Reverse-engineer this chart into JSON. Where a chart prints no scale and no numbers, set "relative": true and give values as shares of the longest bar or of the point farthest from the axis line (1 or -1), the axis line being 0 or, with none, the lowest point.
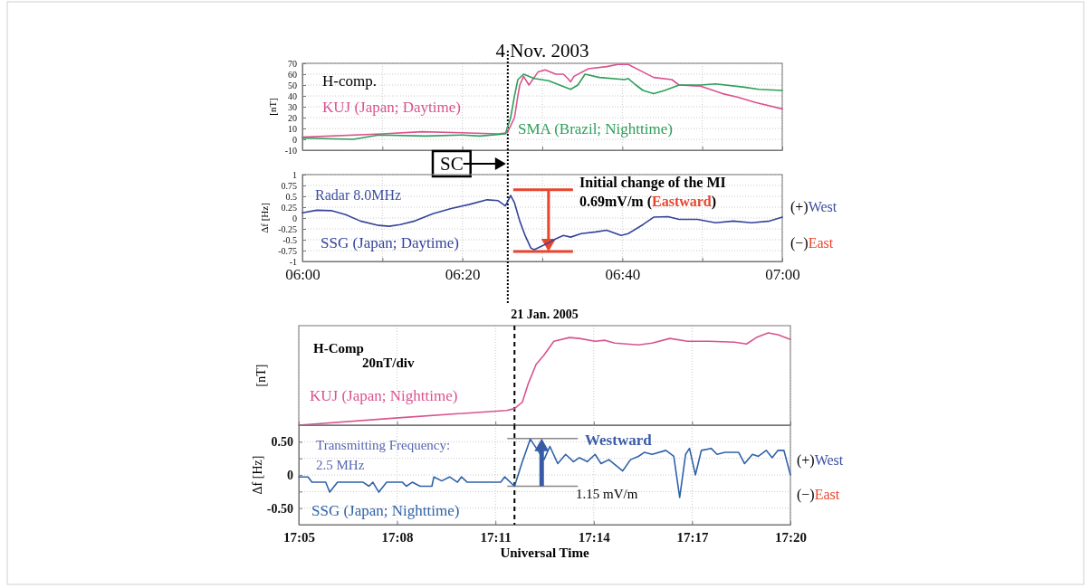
{
  "chart_data": [
    {
      "type": "line",
      "title": "4 Nov. 2003",
      "ylabel": "[nT]",
      "xlim": [
        6,
        7
      ],
      "ylim": [
        -10,
        70
      ],
      "xticks": [
        6,
        6.1667,
        6.3333,
        6.5,
        6.6667,
        6.8333,
        7
      ],
      "yticks": [
        -10,
        0,
        10,
        20,
        30,
        40,
        50,
        60,
        70
      ],
      "tick_labels": "y",
      "grid": true,
      "annotations": [
        "H-comp.",
        "SC"
      ],
      "ref_lines": [
        {
          "axis": "x",
          "value": 6.428,
          "color": "#000000",
          "line_style": "dotted"
        }
      ],
      "series": [
        {
          "name": "KUJ (Japan; Daytime)",
          "color": "#d9538f",
          "x": [
            6.0,
            6.166,
            6.249,
            6.332,
            6.408,
            6.427,
            6.442,
            6.449,
            6.453,
            6.461,
            6.472,
            6.491,
            6.506,
            6.528,
            6.544,
            6.553,
            6.559,
            6.566,
            6.596,
            6.634,
            6.657,
            6.679,
            6.71,
            6.732,
            6.77,
            6.785,
            6.83,
            6.876,
            6.906,
            6.944,
            7.0
          ],
          "values": [
            2,
            5,
            7,
            6,
            5,
            6,
            20,
            40,
            50,
            58,
            50,
            62,
            64,
            60,
            60,
            56,
            53,
            58,
            65,
            67,
            69,
            69,
            62,
            57,
            55,
            50,
            49,
            42,
            39,
            34,
            28
          ]
        },
        {
          "name": "SMA (Brazil; Nighttime)",
          "color": "#2e9e5b",
          "x": [
            6.0,
            6.106,
            6.159,
            6.257,
            6.332,
            6.37,
            6.423,
            6.434,
            6.442,
            6.449,
            6.461,
            6.483,
            6.513,
            6.536,
            6.559,
            6.574,
            6.589,
            6.619,
            6.672,
            6.679,
            6.695,
            6.71,
            6.732,
            6.755,
            6.785,
            6.83,
            6.861,
            6.921,
            6.951,
            7.0
          ],
          "values": [
            1,
            0,
            4,
            3,
            4,
            3,
            5,
            20,
            40,
            55,
            60,
            56,
            54,
            50,
            46,
            50,
            60,
            57,
            55,
            56,
            50,
            45,
            42,
            45,
            50,
            50,
            51,
            48,
            46,
            45
          ]
        }
      ]
    },
    {
      "type": "line",
      "ylabel": "Δf [Hz]",
      "xlim": [
        6,
        7
      ],
      "ylim": [
        -1,
        1
      ],
      "xticks": [
        {
          "value": 6,
          "label": "06:00"
        },
        {
          "value": 6.1667,
          "label": null
        },
        {
          "value": 6.3333,
          "label": "06:20"
        },
        {
          "value": 6.5,
          "label": null
        },
        {
          "value": 6.6667,
          "label": "06:40"
        },
        {
          "value": 6.8333,
          "label": null
        },
        {
          "value": 7,
          "label": "07:00"
        }
      ],
      "yticks": [
        -1,
        -0.75,
        -0.5,
        -0.25,
        0,
        0.25,
        0.5,
        0.75,
        1
      ],
      "grid": true,
      "annotations": [
        "Radar 8.0MHz",
        "Initial change of the MI",
        "0.69mV/m (Eastward)",
        "(+)West",
        "(−)East"
      ],
      "ref_lines": [
        {
          "axis": "x",
          "value": 6.428,
          "color": "#000000",
          "line_style": "dotted"
        },
        {
          "axis": "y",
          "value": 0.65,
          "color": "#e8452c"
        },
        {
          "axis": "y",
          "value": -0.77,
          "color": "#e8452c"
        }
      ],
      "series": [
        {
          "name": "SSG (Japan; Daytime)",
          "color": "#34449a",
          "x": [
            6.0,
            6.03,
            6.06,
            6.09,
            6.121,
            6.159,
            6.181,
            6.204,
            6.234,
            6.272,
            6.31,
            6.347,
            6.385,
            6.408,
            6.423,
            6.434,
            6.442,
            6.453,
            6.464,
            6.476,
            6.483,
            6.498,
            6.513,
            6.528,
            6.544,
            6.559,
            6.581,
            6.611,
            6.634,
            6.664,
            6.679,
            6.71,
            6.732,
            6.762,
            6.785,
            6.823,
            6.861,
            6.898,
            6.936,
            6.974,
            7.0
          ],
          "values": [
            0.12,
            0.18,
            0.17,
            0.08,
            -0.07,
            -0.17,
            -0.19,
            -0.15,
            -0.07,
            0.1,
            0.22,
            0.31,
            0.42,
            0.4,
            0.28,
            0.52,
            0.35,
            -0.07,
            -0.4,
            -0.69,
            -0.73,
            -0.65,
            -0.57,
            -0.48,
            -0.4,
            -0.44,
            -0.36,
            -0.32,
            -0.28,
            -0.4,
            -0.36,
            -0.15,
            0.02,
            0.03,
            -0.03,
            -0.03,
            -0.11,
            -0.07,
            -0.11,
            -0.07,
            0.02
          ]
        }
      ]
    },
    {
      "type": "line",
      "title": "21 Jan. 2005",
      "ylabel": "[nT]",
      "relative": true,
      "xlim": [
        17.0833,
        17.3333
      ],
      "xticks": [
        17.0833,
        17.1333,
        17.1833,
        17.2333,
        17.2833,
        17.3333
      ],
      "tick_labels": false,
      "grid": "x",
      "annotations": [
        "H-Comp",
        "20nT/div"
      ],
      "ref_lines": [
        {
          "axis": "x",
          "value": 17.193,
          "color": "#000000",
          "line_style": "dashed"
        }
      ],
      "series": [
        {
          "name": "KUJ (Japan; Nighttime)",
          "color": "#d9538f",
          "x": [
            17.0833,
            17.134,
            17.189,
            17.193,
            17.197,
            17.2,
            17.204,
            17.208,
            17.213,
            17.221,
            17.226,
            17.234,
            17.239,
            17.244,
            17.256,
            17.263,
            17.272,
            17.281,
            17.292,
            17.305,
            17.311,
            17.316,
            17.322,
            17.327,
            17.3333
          ],
          "values": [
            0,
            0.08,
            0.16,
            0.18,
            0.25,
            0.45,
            0.66,
            0.76,
            0.91,
            0.95,
            0.94,
            0.91,
            0.92,
            0.89,
            0.87,
            0.89,
            0.94,
            0.91,
            0.91,
            0.9,
            0.88,
            0.95,
            1,
            0.98,
            0.93
          ]
        }
      ]
    },
    {
      "type": "line",
      "xlabel": "Universal Time",
      "ylabel": "Δf [Hz]",
      "xlim": [
        17.0833,
        17.3333
      ],
      "ylim": [
        -0.75,
        0.75
      ],
      "xticks": [
        {
          "value": 17.0833,
          "label": "17:05"
        },
        {
          "value": 17.1333,
          "label": "17:08"
        },
        {
          "value": 17.1833,
          "label": "17:11"
        },
        {
          "value": 17.2333,
          "label": "17:14"
        },
        {
          "value": 17.2833,
          "label": "17:17"
        },
        {
          "value": 17.3333,
          "label": "17:20"
        }
      ],
      "yticks": [
        {
          "value": -0.5,
          "label": "-0.50"
        },
        {
          "value": -0.25,
          "label": null
        },
        0,
        {
          "value": 0.25,
          "label": null
        },
        {
          "value": 0.5,
          "label": "0.50"
        }
      ],
      "grid": true,
      "annotations": [
        "Transmitting Frequency:",
        "2.5 MHz",
        "Westward",
        "1.15 mV/m",
        "(+)West",
        "(−)East"
      ],
      "ref_lines": [
        {
          "axis": "x",
          "value": 17.193,
          "color": "#000000",
          "line_style": "dashed"
        },
        {
          "axis": "y",
          "value": 0.55,
          "color": "#888888"
        },
        {
          "axis": "y",
          "value": -0.17,
          "color": "#888888"
        }
      ],
      "series": [
        {
          "name": "SSG (Japan; Nighttime)",
          "color": "#2f62a8",
          "x": [
            17.0833,
            17.088,
            17.09,
            17.097,
            17.099,
            17.103,
            17.116,
            17.119,
            17.121,
            17.124,
            17.128,
            17.136,
            17.138,
            17.141,
            17.145,
            17.151,
            17.152,
            17.156,
            17.16,
            17.164,
            17.166,
            17.169,
            17.186,
            17.188,
            17.193,
            17.197,
            17.201,
            17.208,
            17.211,
            17.215,
            17.219,
            17.223,
            17.226,
            17.23,
            17.234,
            17.237,
            17.241,
            17.248,
            17.252,
            17.256,
            17.259,
            17.263,
            17.27,
            17.274,
            17.277,
            17.28,
            17.282,
            17.285,
            17.288,
            17.293,
            17.296,
            17.3,
            17.307,
            17.31,
            17.314,
            17.317,
            17.321,
            17.324,
            17.327,
            17.33,
            17.3333
          ],
          "values": [
            -0.03,
            -0.03,
            -0.11,
            -0.11,
            -0.26,
            -0.11,
            -0.11,
            -0.17,
            -0.11,
            -0.26,
            -0.11,
            -0.11,
            -0.17,
            -0.11,
            -0.17,
            -0.17,
            -0.03,
            -0.09,
            -0.03,
            -0.11,
            -0.03,
            -0.11,
            -0.11,
            -0.03,
            -0.17,
            0.2,
            0.54,
            0.23,
            0.43,
            0.17,
            0.31,
            0.2,
            0.26,
            0.2,
            0.31,
            0.17,
            0.23,
            0.06,
            0.23,
            0.28,
            0.34,
            0.31,
            0.37,
            0.28,
            -0.34,
            0.31,
            0.4,
            0,
            0.37,
            0.4,
            0.31,
            0.34,
            0.34,
            0.17,
            0.31,
            0.28,
            0.37,
            0.26,
            0.37,
            0.37,
            0
          ]
        }
      ]
    }
  ]
}
